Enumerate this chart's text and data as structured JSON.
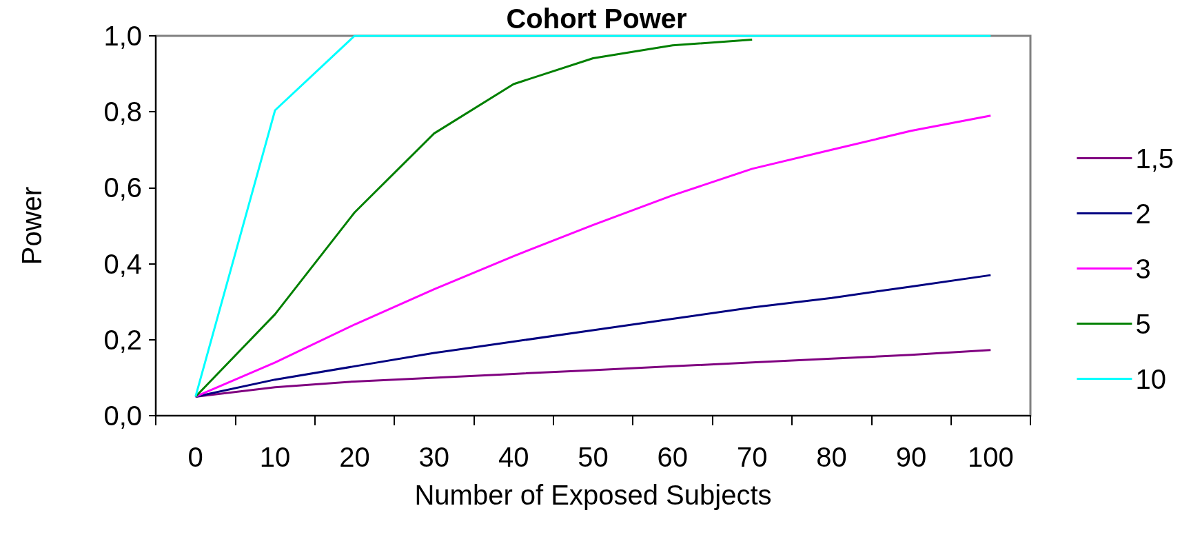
{
  "chart_data": {
    "type": "line",
    "title": "Cohort Power",
    "xlabel": "Number of Exposed Subjects",
    "ylabel": "Power",
    "categories": [
      "0",
      "10",
      "20",
      "30",
      "40",
      "50",
      "60",
      "70",
      "80",
      "90",
      "100"
    ],
    "series": [
      {
        "name": "1,5",
        "color": "#800080",
        "values": [
          0.05,
          0.075,
          0.09,
          0.1,
          0.11,
          0.12,
          0.13,
          0.14,
          0.15,
          0.16,
          0.173
        ]
      },
      {
        "name": "2",
        "color": "#000080",
        "values": [
          0.05,
          0.095,
          0.13,
          0.165,
          0.195,
          0.225,
          0.255,
          0.285,
          0.31,
          0.34,
          0.37
        ]
      },
      {
        "name": "3",
        "color": "#ff00ff",
        "values": [
          0.05,
          0.14,
          0.24,
          0.333,
          0.42,
          0.502,
          0.58,
          0.65,
          0.7,
          0.75,
          0.79
        ]
      },
      {
        "name": "5",
        "color": "#008000",
        "values": [
          0.05,
          0.267,
          0.535,
          0.743,
          0.873,
          0.941,
          0.975,
          0.99,
          null,
          null,
          null
        ]
      },
      {
        "name": "10",
        "color": "#00ffff",
        "values": [
          0.05,
          0.804,
          1.0,
          1.0,
          1.0,
          1.0,
          1.0,
          1.0,
          1.0,
          1.0,
          1.0
        ]
      }
    ],
    "ylim": [
      0,
      1
    ],
    "yticks": [
      {
        "value": 0,
        "label": "0,0"
      },
      {
        "value": 0.2,
        "label": "0,2"
      },
      {
        "value": 0.4,
        "label": "0,4"
      },
      {
        "value": 0.6,
        "label": "0,6"
      },
      {
        "value": 0.8,
        "label": "0,8"
      },
      {
        "value": 1,
        "label": "1,0"
      }
    ],
    "grid": false,
    "legend": "right",
    "marker": "none",
    "line_style": "solid"
  }
}
